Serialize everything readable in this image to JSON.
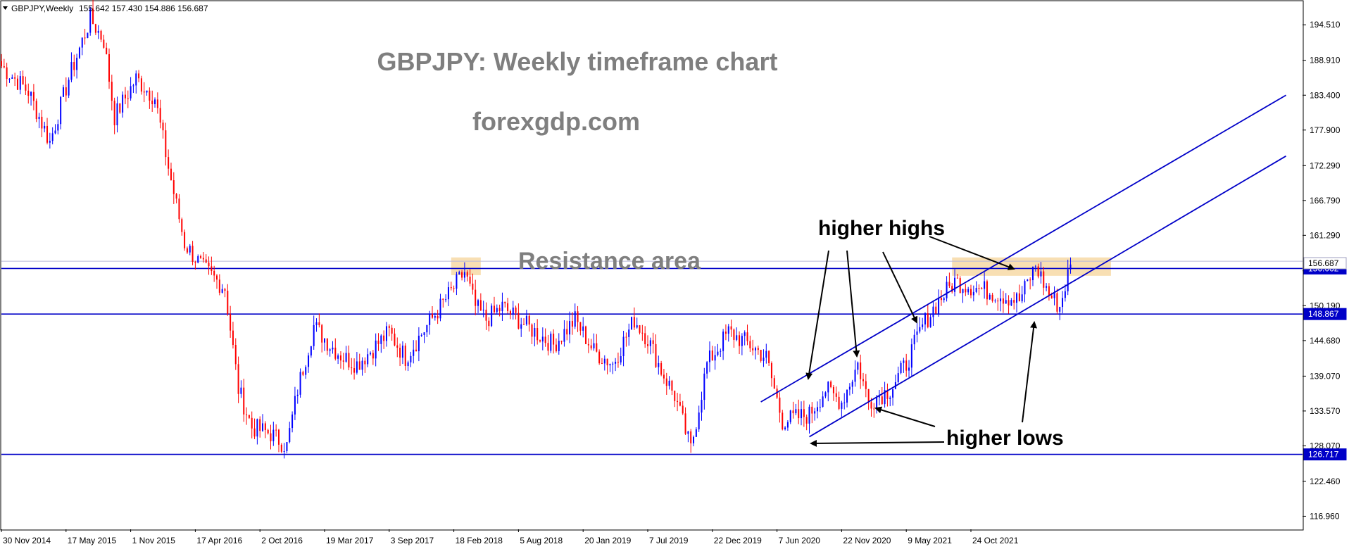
{
  "chart_data": {
    "type": "candlestick",
    "symbol_header": "GBPJPY,Weekly",
    "ohlc_header": "155.642 157.430 154.886 156.687",
    "title": "GBPJPY: Weekly timeframe chart",
    "subtitle": "forexgdp.com",
    "y_axis_ticks": [
      "194.510",
      "188.910",
      "183.400",
      "177.900",
      "172.290",
      "166.790",
      "161.290",
      "155.690",
      "150.190",
      "144.680",
      "139.070",
      "133.570",
      "128.070",
      "122.460",
      "116.960"
    ],
    "x_axis_labels": [
      "30 Nov 2014",
      "17 May 2015",
      "1 Nov 2015",
      "17 Apr 2016",
      "2 Oct 2016",
      "19 Mar 2017",
      "3 Sep 2017",
      "18 Feb 2018",
      "5 Aug 2018",
      "20 Jan 2019",
      "7 Jul 2019",
      "22 Dec 2019",
      "7 Jun 2020",
      "22 Nov 2020",
      "9 May 2021",
      "24 Oct 2021"
    ],
    "ylim": [
      114.9,
      198.2
    ],
    "horizontal_levels": [
      {
        "price": 156.062,
        "label": "156.062",
        "style": "price-box"
      },
      {
        "price": 148.867,
        "label": "148.867",
        "style": "price-box"
      },
      {
        "price": 126.717,
        "label": "126.717",
        "style": "price-box"
      }
    ],
    "current_price": "156.687",
    "channel": {
      "upper": [
        {
          "week": 282,
          "price": 135.0
        },
        {
          "week": 477,
          "price": 183.4
        }
      ],
      "lower": [
        {
          "week": 300,
          "price": 129.5
        },
        {
          "week": 477,
          "price": 173.8
        }
      ]
    },
    "resistance_zones": [
      {
        "week_start": 167,
        "week_end": 178,
        "price_low": 155.0,
        "price_high": 157.8
      },
      {
        "week_start": 353,
        "week_end": 412,
        "price_low": 154.9,
        "price_high": 157.8
      }
    ],
    "annotations": {
      "resistance_label": "Resistance area",
      "higher_highs_label": "higher highs",
      "higher_lows_label": "higher lows"
    },
    "price_path": [
      [
        0,
        188.0
      ],
      [
        10,
        184.0
      ],
      [
        18,
        176.0
      ],
      [
        25,
        186.0
      ],
      [
        33,
        195.5
      ],
      [
        38,
        192.0
      ],
      [
        42,
        180.0
      ],
      [
        50,
        186.0
      ],
      [
        57,
        183.0
      ],
      [
        62,
        172.0
      ],
      [
        68,
        160.0
      ],
      [
        75,
        156.0
      ],
      [
        83,
        153.0
      ],
      [
        88,
        137.0
      ],
      [
        93,
        131.0
      ],
      [
        100,
        130.0
      ],
      [
        106,
        128.0
      ],
      [
        110,
        137.0
      ],
      [
        116,
        147.0
      ],
      [
        122,
        144.0
      ],
      [
        127,
        142.0
      ],
      [
        132,
        141.0
      ],
      [
        137,
        143.0
      ],
      [
        144,
        146.0
      ],
      [
        150,
        142.0
      ],
      [
        158,
        147.0
      ],
      [
        163,
        150.0
      ],
      [
        168,
        153.0
      ],
      [
        172,
        155.5
      ],
      [
        176,
        150.0
      ],
      [
        180,
        148.0
      ],
      [
        186,
        150.0
      ],
      [
        195,
        147.0
      ],
      [
        205,
        144.0
      ],
      [
        213,
        148.0
      ],
      [
        220,
        143.0
      ],
      [
        227,
        141.0
      ],
      [
        235,
        148.0
      ],
      [
        240,
        145.0
      ],
      [
        245,
        140.0
      ],
      [
        250,
        136.0
      ],
      [
        256,
        127.5
      ],
      [
        262,
        141.0
      ],
      [
        270,
        146.0
      ],
      [
        278,
        144.0
      ],
      [
        284,
        142.0
      ],
      [
        290,
        132.0
      ],
      [
        300,
        133.0
      ],
      [
        306,
        137.0
      ],
      [
        312,
        135.0
      ],
      [
        318,
        141.0
      ],
      [
        322,
        135.0
      ],
      [
        330,
        137.0
      ],
      [
        336,
        141.0
      ],
      [
        342,
        147.0
      ],
      [
        348,
        151.0
      ],
      [
        354,
        154.0
      ],
      [
        362,
        153.0
      ],
      [
        370,
        152.0
      ],
      [
        378,
        151.0
      ],
      [
        384,
        156.5
      ],
      [
        389,
        152.0
      ],
      [
        393,
        150.0
      ],
      [
        397,
        156.687
      ]
    ]
  }
}
